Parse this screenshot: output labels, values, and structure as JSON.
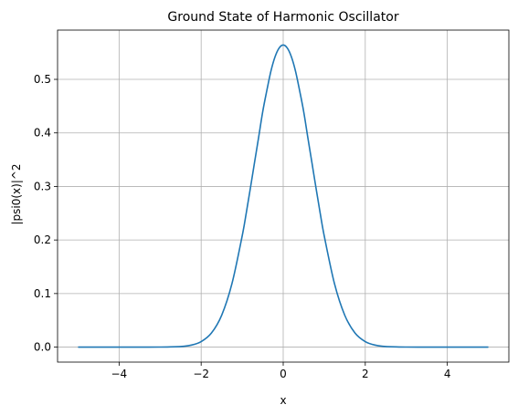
{
  "chart_data": {
    "type": "line",
    "title": "Ground State of Harmonic Oscillator",
    "xlabel": "x",
    "ylabel": "|psi0(x)|^2",
    "xlim": [
      -5.5,
      5.5
    ],
    "ylim": [
      -0.028,
      0.592
    ],
    "xticks": [
      -4,
      -2,
      0,
      2,
      4
    ],
    "xtick_labels": [
      "−4",
      "−2",
      "0",
      "2",
      "4"
    ],
    "yticks": [
      0.0,
      0.1,
      0.2,
      0.3,
      0.4,
      0.5
    ],
    "ytick_labels": [
      "0.0",
      "0.1",
      "0.2",
      "0.3",
      "0.4",
      "0.5"
    ],
    "grid": true,
    "series": [
      {
        "color": "#1f77b4",
        "x": [
          -5.0,
          -4.5,
          -4.0,
          -3.5,
          -3.0,
          -2.5,
          -2.25,
          -2.0,
          -1.75,
          -1.5,
          -1.25,
          -1.0,
          -0.9,
          -0.8,
          -0.7,
          -0.6,
          -0.5,
          -0.4,
          -0.3,
          -0.2,
          -0.1,
          0.0,
          0.1,
          0.2,
          0.3,
          0.4,
          0.5,
          0.6,
          0.7,
          0.8,
          0.9,
          1.0,
          1.25,
          1.5,
          1.75,
          2.0,
          2.25,
          2.5,
          3.0,
          3.5,
          4.0,
          4.5,
          5.0
        ],
        "y": [
          0.0,
          0.0,
          0.0,
          0.0,
          0.0001,
          0.0011,
          0.0036,
          0.0103,
          0.0263,
          0.0595,
          0.1183,
          0.2076,
          0.2507,
          0.2969,
          0.3443,
          0.3913,
          0.4394,
          0.4789,
          0.5153,
          0.542,
          0.5585,
          0.5642,
          0.5585,
          0.542,
          0.5153,
          0.4789,
          0.4394,
          0.3913,
          0.3443,
          0.2969,
          0.2507,
          0.2076,
          0.1183,
          0.0595,
          0.0263,
          0.0103,
          0.0036,
          0.0011,
          0.0001,
          0.0,
          0.0,
          0.0,
          0.0
        ]
      }
    ]
  }
}
